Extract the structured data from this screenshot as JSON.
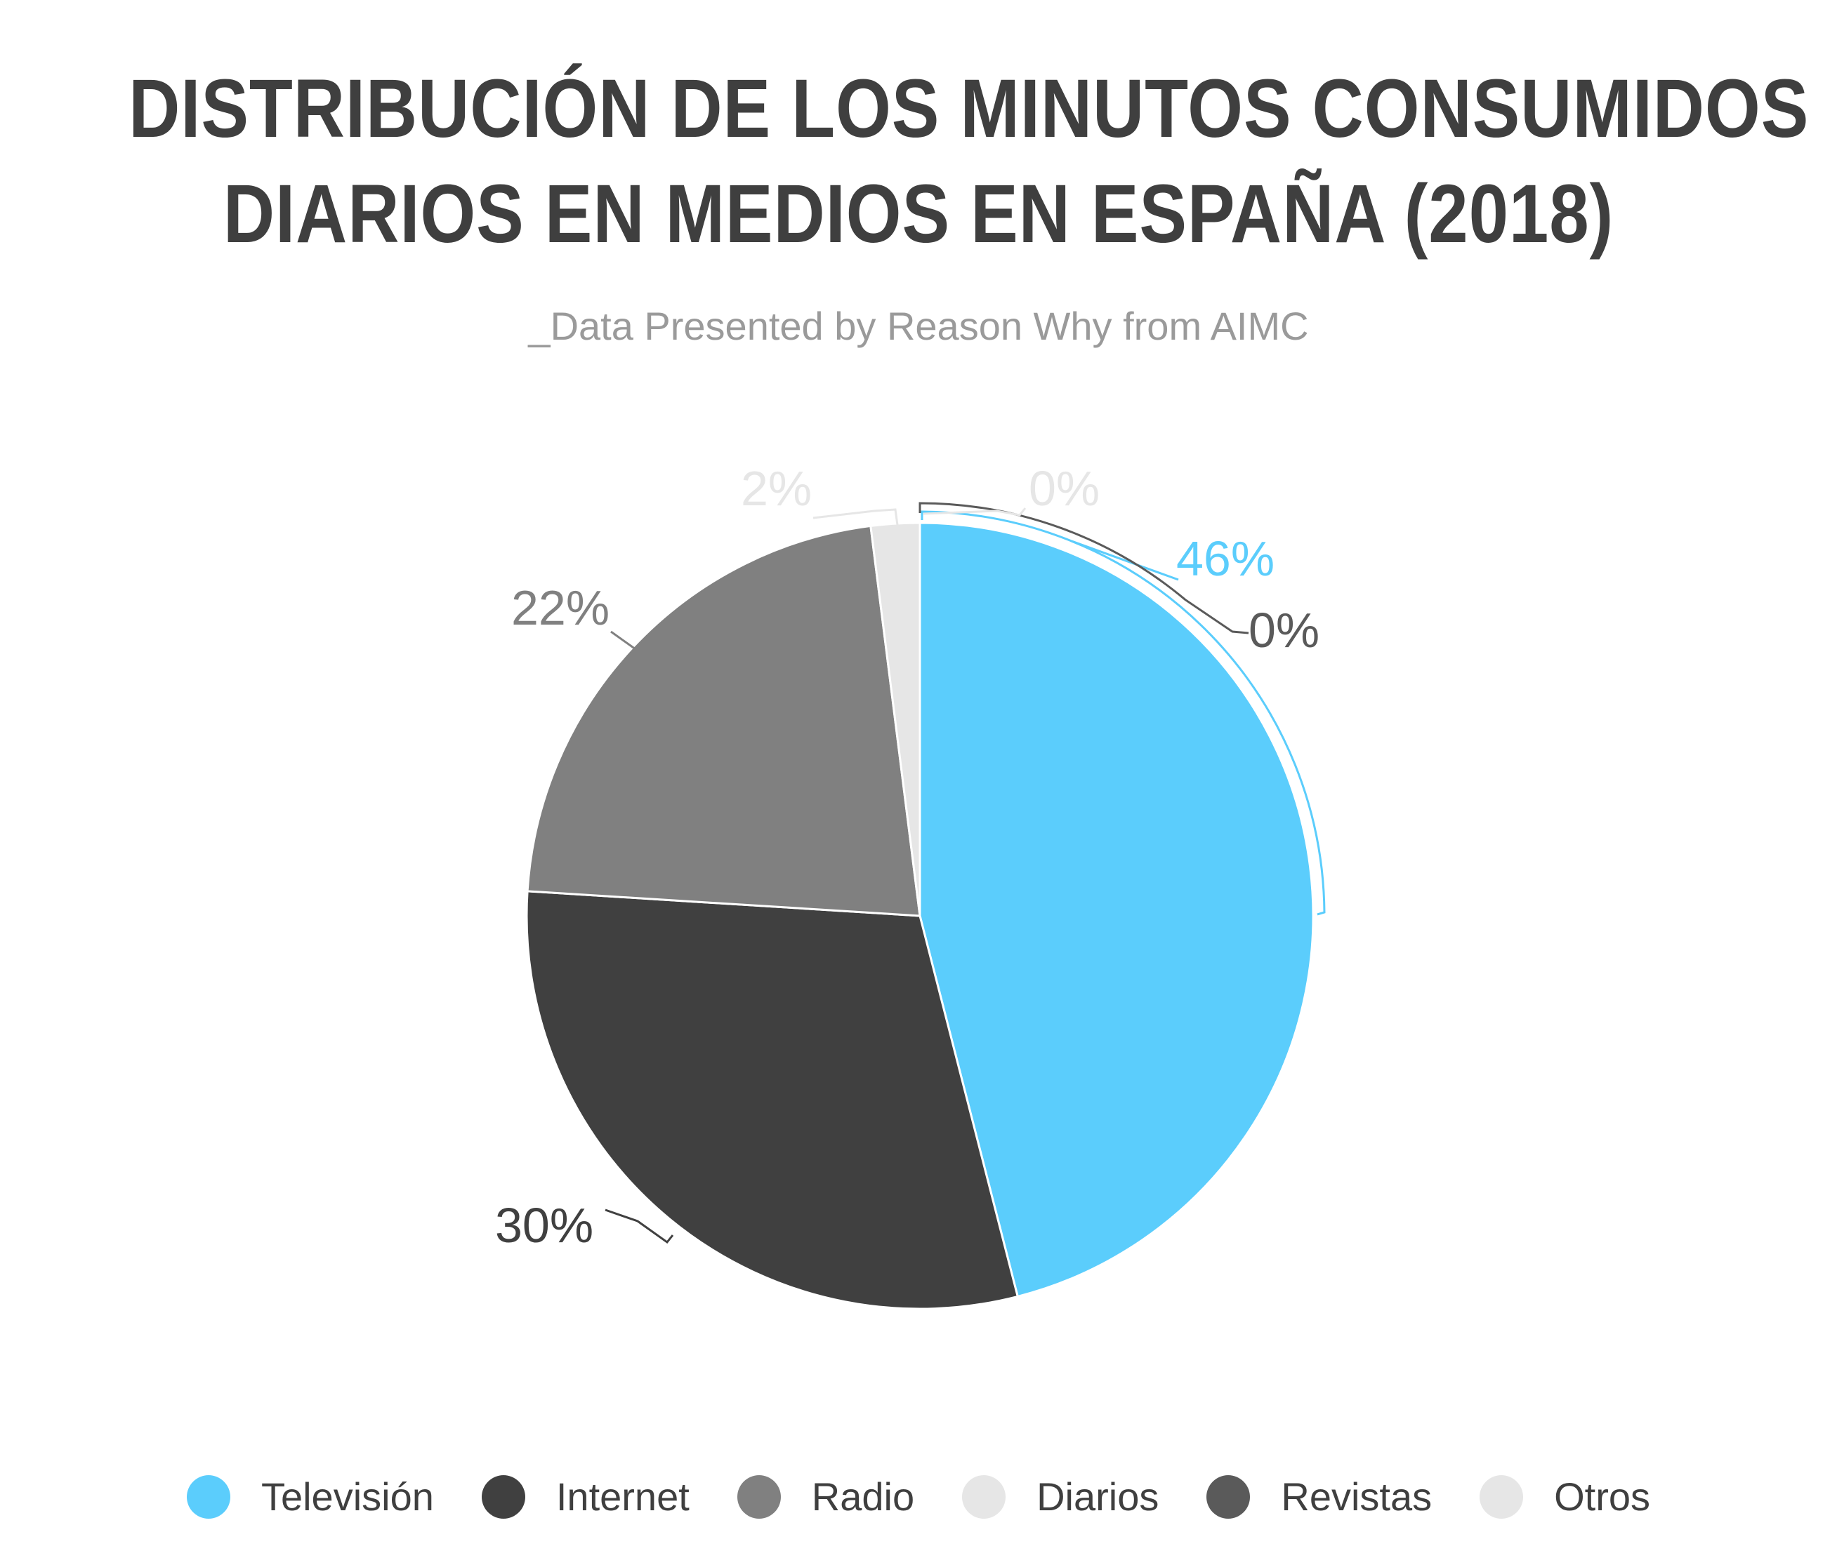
{
  "title": {
    "line1": "DISTRIBUCIÓN DE LOS MINUTOS CONSUMIDOS",
    "line2": "DIARIOS EN MEDIOS EN ESPAÑA (2018)"
  },
  "subtitle": "_Data Presented by Reason Why from AIMC",
  "chart_data": {
    "type": "pie",
    "title": "DISTRIBUCIÓN DE LOS MINUTOS CONSUMIDOS DIARIOS EN MEDIOS EN ESPAÑA (2018)",
    "subtitle": "_Data Presented by Reason Why from AIMC",
    "categories": [
      "Televisión",
      "Internet",
      "Radio",
      "Diarios",
      "Revistas",
      "Otros"
    ],
    "values": [
      46,
      30,
      22,
      2,
      0,
      0
    ],
    "labels": [
      "46%",
      "30%",
      "22%",
      "2%",
      "0%",
      "0%"
    ],
    "colors": [
      "#5bcdfc",
      "#404040",
      "#808080",
      "#e6e6e6",
      "#5a5a5a",
      "#e6e6e6"
    ],
    "label_colors": [
      "#5bcdfc",
      "#404040",
      "#808080",
      "#e6e6e6",
      "#5a5a5a",
      "#e6e6e6"
    ],
    "legend_position": "bottom"
  }
}
